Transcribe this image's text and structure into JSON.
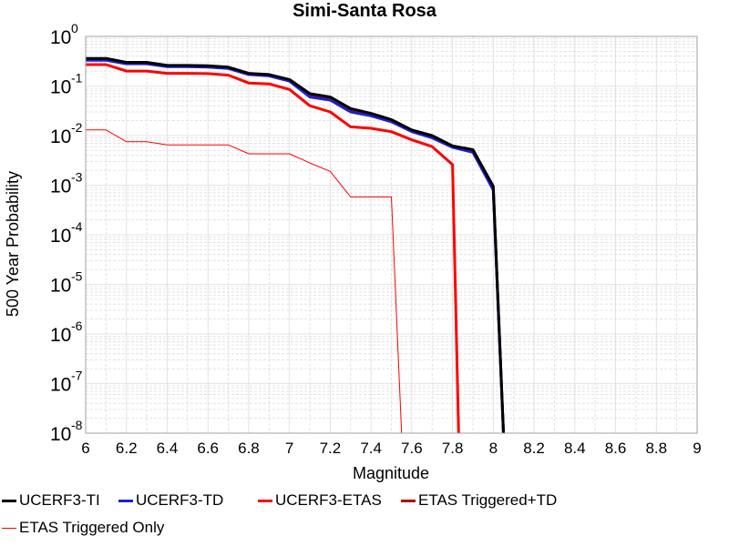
{
  "chart_data": {
    "type": "line",
    "title": "Simi-Santa Rosa",
    "xlabel": "Magnitude",
    "ylabel": "500 Year Probability",
    "xlim": [
      6,
      9
    ],
    "ylim": [
      1e-08,
      1
    ],
    "yscale": "log",
    "grid": true,
    "legend_position": "bottom",
    "x_ticks": [
      "6",
      "6.2",
      "6.4",
      "6.6",
      "6.8",
      "7",
      "7.2",
      "7.4",
      "7.6",
      "7.8",
      "8",
      "8.2",
      "8.4",
      "8.6",
      "8.8",
      "9"
    ],
    "y_tick_bases": [
      "10",
      "10",
      "10",
      "10",
      "10",
      "10",
      "10",
      "10",
      "10"
    ],
    "y_tick_exponents": [
      "-8",
      "-7",
      "-6",
      "-5",
      "-4",
      "-3",
      "-2",
      "-1",
      "0"
    ],
    "series": [
      {
        "name": "UCERF3-TI",
        "color": "#000000",
        "line_width": 3,
        "x": [
          6.0,
          6.1,
          6.2,
          6.3,
          6.4,
          6.5,
          6.6,
          6.7,
          6.8,
          6.9,
          7.0,
          7.1,
          7.2,
          7.3,
          7.4,
          7.5,
          7.6,
          7.7,
          7.8,
          7.9,
          8.0,
          8.05
        ],
        "y": [
          0.36,
          0.36,
          0.3,
          0.3,
          0.26,
          0.26,
          0.255,
          0.24,
          0.18,
          0.17,
          0.135,
          0.07,
          0.06,
          0.035,
          0.028,
          0.021,
          0.013,
          0.01,
          0.0062,
          0.0052,
          0.00095,
          1e-08
        ]
      },
      {
        "name": "UCERF3-TD",
        "color": "#1f1fcc",
        "line_width": 3,
        "x": [
          6.0,
          6.1,
          6.2,
          6.3,
          6.4,
          6.5,
          6.6,
          6.7,
          6.8,
          6.9,
          7.0,
          7.1,
          7.2,
          7.3,
          7.4,
          7.5,
          7.6,
          7.7,
          7.8,
          7.9,
          8.0,
          8.05
        ],
        "y": [
          0.33,
          0.33,
          0.28,
          0.28,
          0.245,
          0.245,
          0.24,
          0.225,
          0.17,
          0.16,
          0.125,
          0.06,
          0.052,
          0.03,
          0.025,
          0.019,
          0.012,
          0.009,
          0.0058,
          0.0046,
          0.0008,
          1e-08
        ]
      },
      {
        "name": "UCERF3-ETAS",
        "color": "#ff0000",
        "line_width": 3,
        "x": [
          6.0,
          6.1,
          6.2,
          6.3,
          6.4,
          6.5,
          6.6,
          6.7,
          6.8,
          6.9,
          7.0,
          7.1,
          7.2,
          7.3,
          7.4,
          7.5,
          7.6,
          7.7,
          7.8,
          7.83
        ],
        "y": [
          0.27,
          0.27,
          0.2,
          0.2,
          0.18,
          0.18,
          0.178,
          0.165,
          0.115,
          0.11,
          0.085,
          0.04,
          0.03,
          0.015,
          0.014,
          0.012,
          0.0082,
          0.006,
          0.0026,
          1e-08
        ]
      },
      {
        "name": "ETAS Triggered+TD",
        "color": "#b30000",
        "line_width": 3,
        "x": [
          6.0,
          6.1,
          6.2,
          6.3,
          6.4,
          6.5,
          6.6,
          6.7,
          6.8,
          6.9,
          7.0,
          7.1,
          7.2,
          7.3,
          7.4,
          7.5,
          7.6,
          7.7,
          7.8,
          7.9,
          8.0,
          8.05
        ],
        "y": [
          0.34,
          0.34,
          0.285,
          0.285,
          0.25,
          0.25,
          0.245,
          0.23,
          0.175,
          0.165,
          0.13,
          0.065,
          0.055,
          0.032,
          0.026,
          0.02,
          0.0125,
          0.0095,
          0.006,
          0.0048,
          0.00088,
          1e-08
        ]
      },
      {
        "name": "ETAS Triggered Only",
        "color": "#ff0000",
        "line_width": 1,
        "x": [
          6.0,
          6.1,
          6.2,
          6.3,
          6.4,
          6.5,
          6.6,
          6.7,
          6.8,
          6.9,
          7.0,
          7.1,
          7.2,
          7.3,
          7.4,
          7.5,
          7.55
        ],
        "y": [
          0.013,
          0.013,
          0.0075,
          0.0075,
          0.0065,
          0.0065,
          0.0065,
          0.0065,
          0.0043,
          0.0043,
          0.0043,
          0.0028,
          0.0019,
          0.00058,
          0.00058,
          0.00058,
          1e-08
        ]
      }
    ]
  }
}
